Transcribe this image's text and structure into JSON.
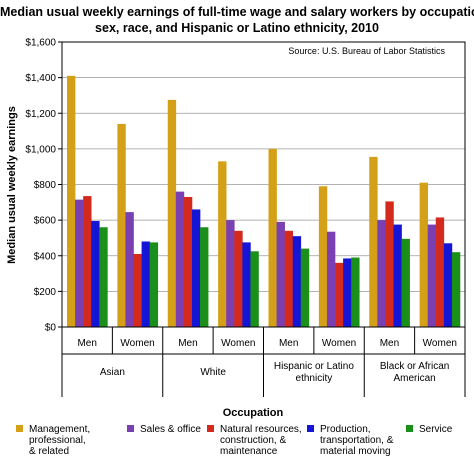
{
  "chart_data": {
    "type": "bar",
    "title": [
      "Median usual weekly earnings of full-time wage and salary workers by occupation,",
      "sex, race, and Hispanic or Latino ethnicity, 2010"
    ],
    "source": "Source: U.S. Bureau of Labor Statistics",
    "ylabel": "Median usual weekly earnings",
    "xlabel": "Occupation",
    "ylim": [
      0,
      1600
    ],
    "yticks": [
      "$0",
      "$200",
      "$400",
      "$600",
      "$800",
      "$1,000",
      "$1,200",
      "$1,400",
      "$1,600"
    ],
    "grid": true,
    "legend_position": "bottom",
    "groups": [
      {
        "name": "Asian",
        "categories": [
          "Men",
          "Women"
        ]
      },
      {
        "name": "White",
        "categories": [
          "Men",
          "Women"
        ]
      },
      {
        "name": "Hispanic or Latino ethnicity",
        "categories": [
          "Men",
          "Women"
        ]
      },
      {
        "name": "Black or African American",
        "categories": [
          "Men",
          "Women"
        ]
      }
    ],
    "series": [
      {
        "name": "Management, professional, & related",
        "color": "#d4a017",
        "values": [
          1410,
          1140,
          1275,
          930,
          1000,
          790,
          955,
          810
        ]
      },
      {
        "name": "Sales & office",
        "color": "#7a3fb0",
        "values": [
          715,
          645,
          760,
          600,
          590,
          535,
          600,
          575
        ]
      },
      {
        "name": "Natural resources, construction, & maintenance",
        "color": "#d42a1e",
        "values": [
          735,
          410,
          730,
          540,
          540,
          360,
          705,
          615
        ]
      },
      {
        "name": "Production, transportation, & material moving",
        "color": "#1515d6",
        "values": [
          595,
          480,
          660,
          475,
          510,
          385,
          575,
          470
        ]
      },
      {
        "name": "Service",
        "color": "#1a8f1a",
        "values": [
          560,
          475,
          560,
          425,
          440,
          390,
          495,
          420
        ]
      }
    ]
  }
}
